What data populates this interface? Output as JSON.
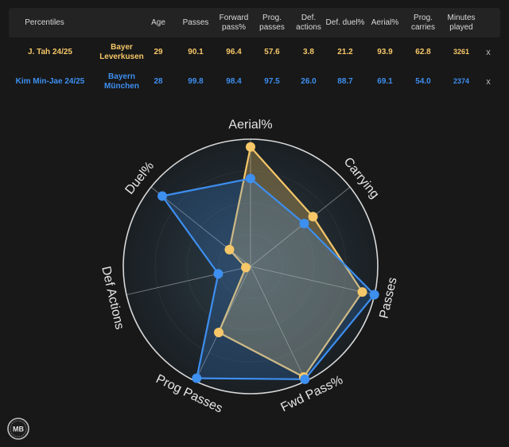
{
  "table": {
    "headers": {
      "percentiles": "Percentiles",
      "age": "Age",
      "passes": "Passes",
      "forward_pass": "Forward pass%",
      "prog_passes": "Prog. passes",
      "def_actions": "Def. actions",
      "def_duel": "Def. duel%",
      "aerial": "Aerial%",
      "prog_carries": "Prog. carries",
      "minutes_played": "Minutes played"
    },
    "rows": [
      {
        "player": "J. Tah 24/25",
        "team": "Bayer Leverkusen",
        "age": "29",
        "passes": "90.1",
        "forward_pass": "96.4",
        "prog_passes": "57.6",
        "def_actions": "3.8",
        "def_duel": "21.2",
        "aerial": "93.9",
        "prog_carries": "62.8",
        "minutes": "3261",
        "remove": "x"
      },
      {
        "player": "Kim Min-Jae 24/25",
        "team": "Bayern München",
        "age": "28",
        "passes": "99.8",
        "forward_pass": "98.4",
        "prog_passes": "97.5",
        "def_actions": "26.0",
        "def_duel": "88.7",
        "aerial": "69.1",
        "prog_carries": "54.0",
        "minutes": "2374",
        "remove": "x"
      }
    ]
  },
  "logo_text": "MB",
  "chart_data": {
    "type": "radar",
    "axes": [
      "Aerial%",
      "Carrying",
      "Passes",
      "Fwd Pass%",
      "Prog Passes",
      "Def Actions",
      "Duel%"
    ],
    "range": [
      0,
      100
    ],
    "grid": true,
    "series": [
      {
        "name": "J. Tah 24/25",
        "color": "#f6c768",
        "values": [
          93.9,
          62.8,
          90.1,
          96.4,
          57.6,
          3.8,
          21.2
        ]
      },
      {
        "name": "Kim Min-Jae 24/25",
        "color": "#3d8ff0",
        "values": [
          69.1,
          54.0,
          99.8,
          98.4,
          97.5,
          26.0,
          88.7
        ]
      }
    ]
  }
}
